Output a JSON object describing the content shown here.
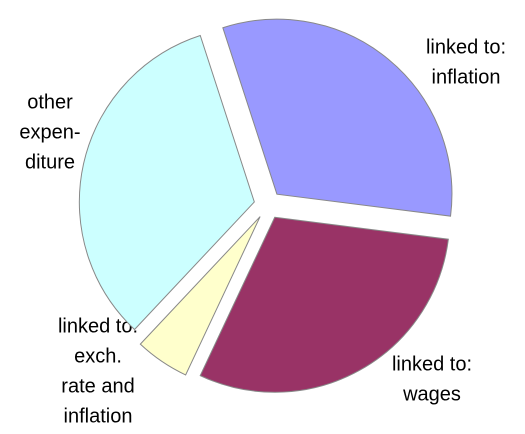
{
  "chart_data": {
    "type": "pie",
    "categories": [
      [
        "linked to:",
        "inflation"
      ],
      [
        "linked to:",
        "wages"
      ],
      [
        "linked to:",
        "exch.",
        "rate and",
        "inflation"
      ],
      [
        "other",
        "expen-",
        "diture"
      ]
    ],
    "values": [
      32,
      30,
      5,
      33
    ],
    "colors": [
      "#9999ff",
      "#993366",
      "#ffffcc",
      "#ccffff"
    ],
    "exploded": true
  }
}
